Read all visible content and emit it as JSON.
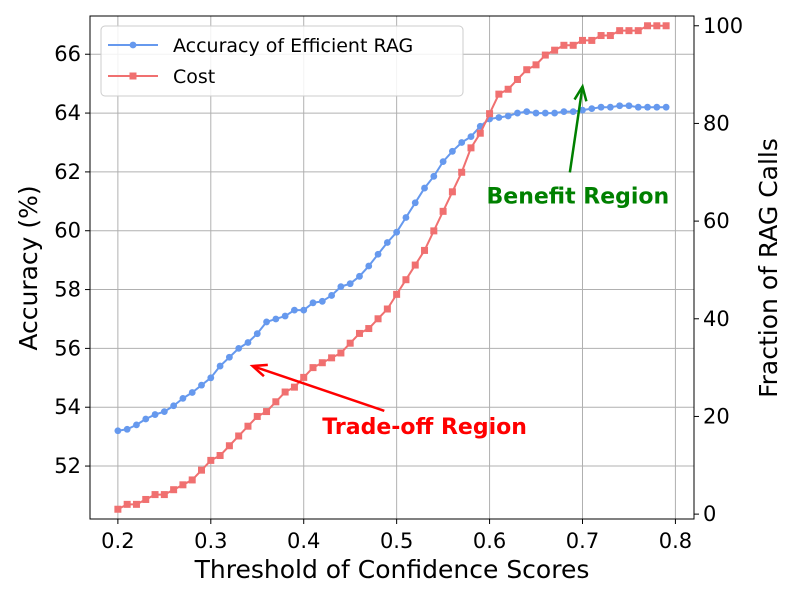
{
  "chart_data": {
    "type": "line",
    "xlabel": "Threshold of Confidence Scores",
    "ylabel_left": "Accuracy (%)",
    "ylabel_right": "Fraction of RAG Calls",
    "xlim": [
      0.17,
      0.82
    ],
    "ylim_left": [
      50.2,
      67.3
    ],
    "ylim_right": [
      -1,
      102
    ],
    "x_ticks": [
      0.2,
      0.3,
      0.4,
      0.5,
      0.6,
      0.7,
      0.8
    ],
    "x_tick_labels": [
      "0.2",
      "0.3",
      "0.4",
      "0.5",
      "0.6",
      "0.7",
      "0.8"
    ],
    "y_left_ticks": [
      52,
      54,
      56,
      58,
      60,
      62,
      64,
      66
    ],
    "y_left_tick_labels": [
      "52",
      "54",
      "56",
      "58",
      "60",
      "62",
      "64",
      "66"
    ],
    "y_right_ticks": [
      0,
      20,
      40,
      60,
      80,
      100
    ],
    "y_right_tick_labels": [
      "0",
      "20",
      "40",
      "60",
      "80",
      "100"
    ],
    "grid": true,
    "legend_position": "top-left",
    "x": [
      0.2,
      0.21,
      0.22,
      0.23,
      0.24,
      0.25,
      0.26,
      0.27,
      0.28,
      0.29,
      0.3,
      0.31,
      0.32,
      0.33,
      0.34,
      0.35,
      0.36,
      0.37,
      0.38,
      0.39,
      0.4,
      0.41,
      0.42,
      0.43,
      0.44,
      0.45,
      0.46,
      0.47,
      0.48,
      0.49,
      0.5,
      0.51,
      0.52,
      0.53,
      0.54,
      0.55,
      0.56,
      0.57,
      0.58,
      0.59,
      0.6,
      0.61,
      0.62,
      0.63,
      0.64,
      0.65,
      0.66,
      0.67,
      0.68,
      0.69,
      0.7,
      0.71,
      0.72,
      0.73,
      0.74,
      0.75,
      0.76,
      0.77,
      0.78,
      0.79
    ],
    "series": [
      {
        "name": "Accuracy of Efficient RAG",
        "axis": "left",
        "color": "#6699ee",
        "marker": "circle",
        "values": [
          53.2,
          53.25,
          53.4,
          53.6,
          53.75,
          53.85,
          54.05,
          54.3,
          54.5,
          54.75,
          55.0,
          55.4,
          55.7,
          56.0,
          56.2,
          56.5,
          56.9,
          57.0,
          57.1,
          57.3,
          57.3,
          57.55,
          57.6,
          57.8,
          58.1,
          58.2,
          58.45,
          58.8,
          59.2,
          59.6,
          59.95,
          60.45,
          60.95,
          61.45,
          61.85,
          62.35,
          62.7,
          63.0,
          63.2,
          63.55,
          63.8,
          63.85,
          63.9,
          64.0,
          64.05,
          64.0,
          64.0,
          64.0,
          64.05,
          64.05,
          64.1,
          64.15,
          64.2,
          64.2,
          64.25,
          64.25,
          64.2,
          64.2,
          64.2,
          64.2
        ]
      },
      {
        "name": "Cost",
        "axis": "right",
        "color": "#f07070",
        "marker": "square",
        "values": [
          1,
          2,
          2,
          3,
          4,
          4,
          5,
          6,
          7,
          9,
          11,
          12,
          14,
          16,
          18,
          20,
          21,
          23,
          25,
          26,
          28,
          30,
          31,
          32,
          33,
          35,
          37,
          38,
          40,
          42,
          45,
          48,
          51,
          54,
          58,
          62,
          66,
          70,
          75,
          78,
          82,
          86,
          87,
          89,
          91,
          92,
          94,
          95,
          96,
          96,
          97,
          97,
          98,
          98,
          99,
          99,
          99,
          100,
          100,
          100
        ]
      }
    ],
    "annotations": [
      {
        "text": "Benefit Region",
        "color": "#008000",
        "xy": [
          0.7,
          64.9
        ],
        "xytext": [
          0.695,
          61.2
        ]
      },
      {
        "text": "Trade-off Region",
        "color": "#ff0000",
        "xy": [
          0.345,
          55.4
        ],
        "xytext": [
          0.42,
          53.4
        ]
      }
    ]
  }
}
